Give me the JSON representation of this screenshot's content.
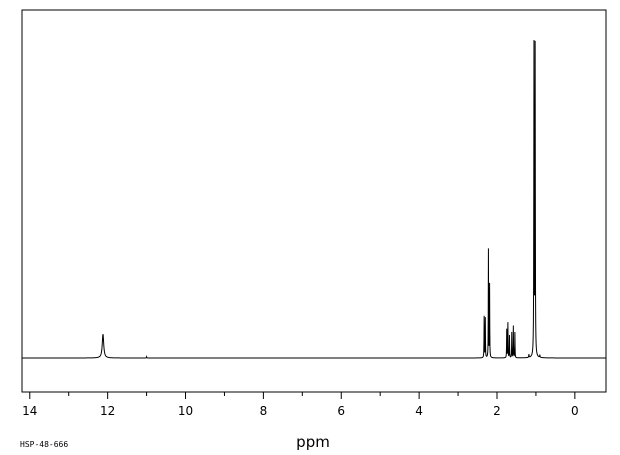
{
  "chart_data": {
    "type": "line",
    "title": "",
    "xlabel": "ppm",
    "ylabel": "",
    "xlim": [
      14.2,
      -0.8
    ],
    "x_reversed": true,
    "ylim": [
      0,
      1.0
    ],
    "grid": false,
    "x_ticks": [
      14,
      12,
      10,
      8,
      6,
      4,
      2,
      0
    ],
    "x_tick_labels": [
      "14",
      "12",
      "10",
      "8",
      "6",
      "4",
      "2",
      "0"
    ],
    "x_minor_step": 1,
    "series": [
      {
        "peaks": [
          {
            "ppm": 12.12,
            "height": 0.075,
            "width": 0.045
          },
          {
            "ppm": 11.0,
            "height": 0.004,
            "width": 0.01
          },
          {
            "ppm": 2.33,
            "height": 0.13,
            "width": 0.008
          },
          {
            "ppm": 2.3,
            "height": 0.125,
            "width": 0.008
          },
          {
            "ppm": 2.22,
            "height": 0.34,
            "width": 0.008
          },
          {
            "ppm": 2.19,
            "height": 0.23,
            "width": 0.008
          },
          {
            "ppm": 1.75,
            "height": 0.09,
            "width": 0.008
          },
          {
            "ppm": 1.72,
            "height": 0.11,
            "width": 0.008
          },
          {
            "ppm": 1.68,
            "height": 0.07,
            "width": 0.008
          },
          {
            "ppm": 1.62,
            "height": 0.08,
            "width": 0.008
          },
          {
            "ppm": 1.58,
            "height": 0.1,
            "width": 0.008
          },
          {
            "ppm": 1.54,
            "height": 0.08,
            "width": 0.008
          },
          {
            "ppm": 1.18,
            "height": 0.01,
            "width": 0.01
          },
          {
            "ppm": 1.05,
            "height": 1.0,
            "width": 0.01
          },
          {
            "ppm": 1.02,
            "height": 0.97,
            "width": 0.01
          },
          {
            "ppm": 0.9,
            "height": 0.008,
            "width": 0.01
          }
        ]
      }
    ]
  },
  "footer": {
    "sample_id": "HSP-48-666"
  }
}
